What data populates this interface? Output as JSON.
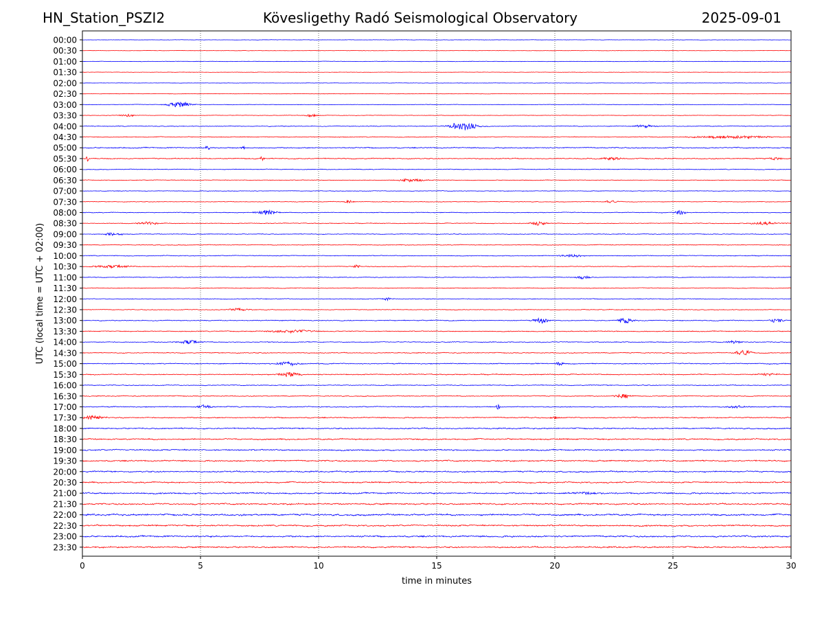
{
  "header": {
    "station": "HN_Station_PSZI2",
    "title": "Kövesligethy Radó Seismological Observatory",
    "date": "2025-09-01"
  },
  "chart_data": {
    "type": "line",
    "title": "Kövesligethy Radó Seismological Observatory",
    "xlabel": "time in minutes",
    "ylabel": "UTC (local time = UTC + 02:00)",
    "xlim": [
      0,
      30
    ],
    "x_ticks": [
      "0",
      "5",
      "10",
      "15",
      "20",
      "25",
      "30"
    ],
    "x_tick_values": [
      0,
      5,
      10,
      15,
      20,
      25,
      30
    ],
    "grid": "vertical dotted at 5-minute marks",
    "series_colors": [
      "#0000ff",
      "#ff0000"
    ],
    "row_labels": [
      "00:00",
      "00:30",
      "01:00",
      "01:30",
      "02:00",
      "02:30",
      "03:00",
      "03:30",
      "04:00",
      "04:30",
      "05:00",
      "05:30",
      "06:00",
      "06:30",
      "07:00",
      "07:30",
      "08:00",
      "08:30",
      "09:00",
      "09:30",
      "10:00",
      "10:30",
      "11:00",
      "11:30",
      "12:00",
      "12:30",
      "13:00",
      "13:30",
      "14:00",
      "14:30",
      "15:00",
      "15:30",
      "16:00",
      "16:30",
      "17:00",
      "17:30",
      "18:00",
      "18:30",
      "19:00",
      "19:30",
      "20:00",
      "20:30",
      "21:00",
      "21:30",
      "22:00",
      "22:30",
      "23:00",
      "23:30"
    ],
    "row_noise": [
      0.3,
      0.3,
      0.4,
      0.3,
      0.3,
      0.3,
      0.4,
      0.4,
      0.6,
      0.6,
      0.9,
      0.8,
      0.6,
      0.5,
      0.5,
      0.5,
      0.6,
      0.6,
      0.6,
      0.6,
      0.6,
      0.6,
      0.6,
      0.6,
      0.6,
      0.6,
      0.7,
      0.7,
      0.7,
      0.7,
      0.8,
      0.8,
      0.7,
      0.7,
      0.8,
      0.9,
      1.0,
      1.1,
      1.1,
      1.1,
      1.1,
      1.1,
      1.2,
      1.2,
      1.4,
      1.2,
      1.3,
      1.2
    ],
    "events": [
      {
        "row": 6,
        "t": 4.1,
        "amp": 4,
        "dur": 0.6
      },
      {
        "row": 7,
        "t": 1.9,
        "amp": 2,
        "dur": 0.4
      },
      {
        "row": 7,
        "t": 9.7,
        "amp": 2,
        "dur": 0.3
      },
      {
        "row": 8,
        "t": 16.1,
        "amp": 6,
        "dur": 0.7
      },
      {
        "row": 8,
        "t": 23.8,
        "amp": 2,
        "dur": 0.6
      },
      {
        "row": 9,
        "t": 27.5,
        "amp": 2,
        "dur": 2.0
      },
      {
        "row": 10,
        "t": 5.3,
        "amp": 6,
        "dur": 0.1
      },
      {
        "row": 10,
        "t": 6.8,
        "amp": 3,
        "dur": 0.1
      },
      {
        "row": 11,
        "t": 0.2,
        "amp": 4,
        "dur": 0.1
      },
      {
        "row": 11,
        "t": 7.6,
        "amp": 4,
        "dur": 0.1
      },
      {
        "row": 11,
        "t": 22.4,
        "amp": 2,
        "dur": 0.5
      },
      {
        "row": 11,
        "t": 29.3,
        "amp": 2,
        "dur": 0.4
      },
      {
        "row": 13,
        "t": 13.9,
        "amp": 2,
        "dur": 0.8
      },
      {
        "row": 15,
        "t": 11.3,
        "amp": 2,
        "dur": 0.3
      },
      {
        "row": 15,
        "t": 22.4,
        "amp": 2,
        "dur": 0.3
      },
      {
        "row": 16,
        "t": 7.8,
        "amp": 4,
        "dur": 0.5
      },
      {
        "row": 16,
        "t": 25.3,
        "amp": 3,
        "dur": 0.3
      },
      {
        "row": 17,
        "t": 2.8,
        "amp": 2,
        "dur": 0.6
      },
      {
        "row": 17,
        "t": 19.3,
        "amp": 3,
        "dur": 0.4
      },
      {
        "row": 17,
        "t": 28.9,
        "amp": 2,
        "dur": 0.8
      },
      {
        "row": 18,
        "t": 1.3,
        "amp": 2,
        "dur": 0.5
      },
      {
        "row": 20,
        "t": 20.7,
        "amp": 2,
        "dur": 0.6
      },
      {
        "row": 21,
        "t": 1.2,
        "amp": 2,
        "dur": 1.0
      },
      {
        "row": 21,
        "t": 11.6,
        "amp": 2,
        "dur": 0.2
      },
      {
        "row": 22,
        "t": 21.2,
        "amp": 2,
        "dur": 0.4
      },
      {
        "row": 24,
        "t": 12.9,
        "amp": 2,
        "dur": 0.2
      },
      {
        "row": 25,
        "t": 6.6,
        "amp": 2,
        "dur": 0.5
      },
      {
        "row": 26,
        "t": 19.4,
        "amp": 4,
        "dur": 0.4
      },
      {
        "row": 26,
        "t": 23.0,
        "amp": 4,
        "dur": 0.4
      },
      {
        "row": 26,
        "t": 29.4,
        "amp": 3,
        "dur": 0.4
      },
      {
        "row": 27,
        "t": 8.8,
        "amp": 2,
        "dur": 1.2
      },
      {
        "row": 28,
        "t": 4.5,
        "amp": 3,
        "dur": 0.5
      },
      {
        "row": 28,
        "t": 27.6,
        "amp": 2,
        "dur": 0.4
      },
      {
        "row": 29,
        "t": 28.0,
        "amp": 4,
        "dur": 0.4
      },
      {
        "row": 30,
        "t": 8.7,
        "amp": 3,
        "dur": 0.6
      },
      {
        "row": 30,
        "t": 20.2,
        "amp": 3,
        "dur": 0.2
      },
      {
        "row": 31,
        "t": 8.8,
        "amp": 3,
        "dur": 0.6
      },
      {
        "row": 31,
        "t": 29.0,
        "amp": 2,
        "dur": 0.5
      },
      {
        "row": 33,
        "t": 22.9,
        "amp": 3,
        "dur": 0.4
      },
      {
        "row": 34,
        "t": 5.2,
        "amp": 3,
        "dur": 0.4
      },
      {
        "row": 34,
        "t": 17.6,
        "amp": 4,
        "dur": 0.1
      },
      {
        "row": 34,
        "t": 27.6,
        "amp": 2,
        "dur": 0.6
      },
      {
        "row": 35,
        "t": 0.5,
        "amp": 3,
        "dur": 0.5
      },
      {
        "row": 35,
        "t": 20.0,
        "amp": 2,
        "dur": 0.2
      },
      {
        "row": 42,
        "t": 21.5,
        "amp": 2,
        "dur": 0.6
      }
    ]
  }
}
